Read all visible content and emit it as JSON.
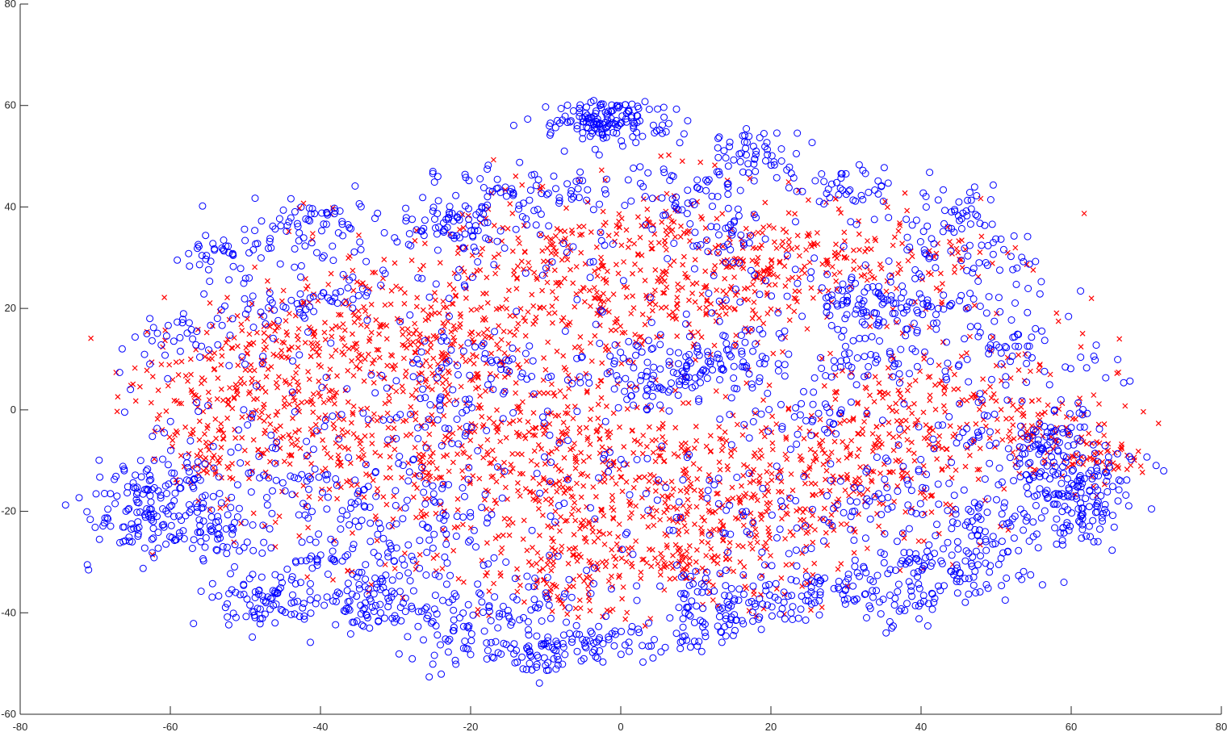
{
  "chart_data": {
    "type": "scatter",
    "title": "",
    "xlabel": "",
    "ylabel": "",
    "xlim": [
      -80,
      80
    ],
    "ylim": [
      -60,
      80
    ],
    "x_ticks": [
      -80,
      -60,
      -40,
      -20,
      0,
      20,
      40,
      60,
      80
    ],
    "y_ticks": [
      -60,
      -40,
      -20,
      0,
      20,
      40,
      60,
      80
    ],
    "x_tick_labels": [
      "-80",
      "-60",
      "-40",
      "-20",
      "0",
      "20",
      "40",
      "60",
      "80"
    ],
    "y_tick_labels": [
      "-60",
      "-40",
      "-20",
      "0",
      "20",
      "40",
      "60",
      "80"
    ],
    "grid": false,
    "legend": "none",
    "series": [
      {
        "marker": "circle",
        "color": "#0000ff",
        "clusters": [
          {
            "center": [
              -4,
              57
            ],
            "spread": [
              3,
              2
            ],
            "n": 90
          },
          {
            "center": [
              0,
              57
            ],
            "spread": [
              3,
              2.5
            ],
            "n": 60
          },
          {
            "center": [
              17,
              50
            ],
            "spread": [
              4,
              3
            ],
            "n": 60
          },
          {
            "center": [
              -42,
              37
            ],
            "spread": [
              4,
              3
            ],
            "n": 60
          },
          {
            "center": [
              -53,
              31
            ],
            "spread": [
              3,
              2
            ],
            "n": 30
          },
          {
            "center": [
              -22,
              36
            ],
            "spread": [
              3,
              3
            ],
            "n": 60
          },
          {
            "center": [
              -15,
              43
            ],
            "spread": [
              4,
              2
            ],
            "n": 30
          },
          {
            "center": [
              -8,
              43
            ],
            "spread": [
              3,
              2
            ],
            "n": 25
          },
          {
            "center": [
              7,
              43
            ],
            "spread": [
              4,
              2
            ],
            "n": 30
          },
          {
            "center": [
              30,
              44
            ],
            "spread": [
              4,
              2.5
            ],
            "n": 35
          },
          {
            "center": [
              44,
              39
            ],
            "spread": [
              4,
              3
            ],
            "n": 40
          },
          {
            "center": [
              14,
              34
            ],
            "spread": [
              3,
              2
            ],
            "n": 25
          },
          {
            "center": [
              48,
              30
            ],
            "spread": [
              4,
              3
            ],
            "n": 30
          },
          {
            "center": [
              38,
              20
            ],
            "spread": [
              5,
              3
            ],
            "n": 70
          },
          {
            "center": [
              30,
              22
            ],
            "spread": [
              3,
              2.5
            ],
            "n": 35
          },
          {
            "center": [
              50,
              13
            ],
            "spread": [
              3,
              3
            ],
            "n": 30
          },
          {
            "center": [
              5,
              7
            ],
            "spread": [
              6,
              3
            ],
            "n": 90
          },
          {
            "center": [
              15,
              10
            ],
            "spread": [
              4,
              3
            ],
            "n": 50
          },
          {
            "center": [
              33,
              10
            ],
            "spread": [
              4,
              2
            ],
            "n": 35
          },
          {
            "center": [
              -20,
              10
            ],
            "spread": [
              4,
              3
            ],
            "n": 30
          },
          {
            "center": [
              -60,
              15
            ],
            "spread": [
              3,
              2
            ],
            "n": 20
          },
          {
            "center": [
              -48,
              20
            ],
            "spread": [
              3,
              2
            ],
            "n": 20
          },
          {
            "center": [
              -38,
              22
            ],
            "spread": [
              3,
              2
            ],
            "n": 25
          },
          {
            "center": [
              -64,
              -20
            ],
            "spread": [
              4,
              5
            ],
            "n": 130
          },
          {
            "center": [
              -54,
              -24
            ],
            "spread": [
              3,
              3
            ],
            "n": 50
          },
          {
            "center": [
              -58,
              -15
            ],
            "spread": [
              4,
              4
            ],
            "n": 40
          },
          {
            "center": [
              -48,
              -37
            ],
            "spread": [
              4,
              3
            ],
            "n": 80
          },
          {
            "center": [
              -36,
              -38
            ],
            "spread": [
              4,
              3
            ],
            "n": 50
          },
          {
            "center": [
              -32,
              -40
            ],
            "spread": [
              3,
              2
            ],
            "n": 25
          },
          {
            "center": [
              -22,
              -42
            ],
            "spread": [
              4,
              4
            ],
            "n": 60
          },
          {
            "center": [
              -14,
              -40
            ],
            "spread": [
              4,
              4
            ],
            "n": 40
          },
          {
            "center": [
              -10,
              -48
            ],
            "spread": [
              5,
              2
            ],
            "n": 70
          },
          {
            "center": [
              -3,
              -45
            ],
            "spread": [
              4,
              2
            ],
            "n": 30
          },
          {
            "center": [
              8,
              -45
            ],
            "spread": [
              4,
              2
            ],
            "n": 40
          },
          {
            "center": [
              13,
              -38
            ],
            "spread": [
              4,
              3
            ],
            "n": 70
          },
          {
            "center": [
              22,
              -38
            ],
            "spread": [
              3,
              2
            ],
            "n": 30
          },
          {
            "center": [
              30,
              -36
            ],
            "spread": [
              4,
              3
            ],
            "n": 40
          },
          {
            "center": [
              38,
              -38
            ],
            "spread": [
              4,
              3
            ],
            "n": 40
          },
          {
            "center": [
              42,
              -30
            ],
            "spread": [
              4,
              3
            ],
            "n": 40
          },
          {
            "center": [
              48,
              -30
            ],
            "spread": [
              4,
              3
            ],
            "n": 50
          },
          {
            "center": [
              50,
              -22
            ],
            "spread": [
              4,
              4
            ],
            "n": 40
          },
          {
            "center": [
              62,
              -16
            ],
            "spread": [
              4,
              4
            ],
            "n": 110
          },
          {
            "center": [
              55,
              -10
            ],
            "spread": [
              3,
              3
            ],
            "n": 40
          },
          {
            "center": [
              58,
              -5
            ],
            "spread": [
              3,
              3
            ],
            "n": 40
          },
          {
            "center": [
              60,
              -20
            ],
            "spread": [
              3,
              3
            ],
            "n": 30
          },
          {
            "center": [
              -44,
              -15
            ],
            "spread": [
              4,
              3
            ],
            "n": 30
          },
          {
            "center": [
              -34,
              -18
            ],
            "spread": [
              4,
              3
            ],
            "n": 25
          },
          {
            "center": [
              -40,
              -30
            ],
            "spread": [
              4,
              3
            ],
            "n": 30
          },
          {
            "center": [
              -30,
              -30
            ],
            "spread": [
              3,
              3
            ],
            "n": 25
          },
          {
            "center": [
              -24,
              0
            ],
            "spread": [
              4,
              4
            ],
            "n": 30
          },
          {
            "center": [
              -24,
              -20
            ],
            "spread": [
              4,
              3
            ],
            "n": 30
          },
          {
            "center": [
              35,
              -18
            ],
            "spread": [
              4,
              3
            ],
            "n": 25
          },
          {
            "center": [
              47,
              -5
            ],
            "spread": [
              4,
              3
            ],
            "n": 25
          },
          {
            "center": [
              25,
              -2
            ],
            "spread": [
              3,
              3
            ],
            "n": 25
          },
          {
            "center": [
              20,
              -20
            ],
            "spread": [
              4,
              3
            ],
            "n": 20
          }
        ],
        "scatter_fraction": 0.2,
        "scatter_n": 700
      },
      {
        "marker": "x",
        "color": "#ff0000",
        "clusters": [
          {
            "center": [
              -50,
              5
            ],
            "spread": [
              8,
              8
            ],
            "n": 180
          },
          {
            "center": [
              -35,
              15
            ],
            "spread": [
              8,
              6
            ],
            "n": 180
          },
          {
            "center": [
              -20,
              12
            ],
            "spread": [
              7,
              6
            ],
            "n": 140
          },
          {
            "center": [
              -25,
              -10
            ],
            "spread": [
              8,
              7
            ],
            "n": 150
          },
          {
            "center": [
              -40,
              -5
            ],
            "spread": [
              7,
              6
            ],
            "n": 100
          },
          {
            "center": [
              -10,
              -5
            ],
            "spread": [
              7,
              8
            ],
            "n": 180
          },
          {
            "center": [
              -8,
              -30
            ],
            "spread": [
              6,
              6
            ],
            "n": 140
          },
          {
            "center": [
              5,
              -15
            ],
            "spread": [
              7,
              7
            ],
            "n": 180
          },
          {
            "center": [
              2,
              20
            ],
            "spread": [
              8,
              7
            ],
            "n": 130
          },
          {
            "center": [
              15,
              25
            ],
            "spread": [
              7,
              6
            ],
            "n": 120
          },
          {
            "center": [
              25,
              30
            ],
            "spread": [
              7,
              4
            ],
            "n": 90
          },
          {
            "center": [
              20,
              -20
            ],
            "spread": [
              7,
              6
            ],
            "n": 150
          },
          {
            "center": [
              30,
              -10
            ],
            "spread": [
              8,
              6
            ],
            "n": 150
          },
          {
            "center": [
              40,
              0
            ],
            "spread": [
              6,
              6
            ],
            "n": 120
          },
          {
            "center": [
              55,
              -5
            ],
            "spread": [
              6,
              4
            ],
            "n": 90
          },
          {
            "center": [
              65,
              -10
            ],
            "spread": [
              3,
              3
            ],
            "n": 40
          },
          {
            "center": [
              -10,
              30
            ],
            "spread": [
              7,
              4
            ],
            "n": 80
          },
          {
            "center": [
              5,
              35
            ],
            "spread": [
              8,
              3
            ],
            "n": 60
          },
          {
            "center": [
              40,
              30
            ],
            "spread": [
              6,
              4
            ],
            "n": 50
          },
          {
            "center": [
              -55,
              -10
            ],
            "spread": [
              4,
              4
            ],
            "n": 50
          },
          {
            "center": [
              10,
              -30
            ],
            "spread": [
              6,
              3
            ],
            "n": 70
          }
        ],
        "scatter_fraction": 0.1,
        "scatter_n": 500
      }
    ]
  }
}
